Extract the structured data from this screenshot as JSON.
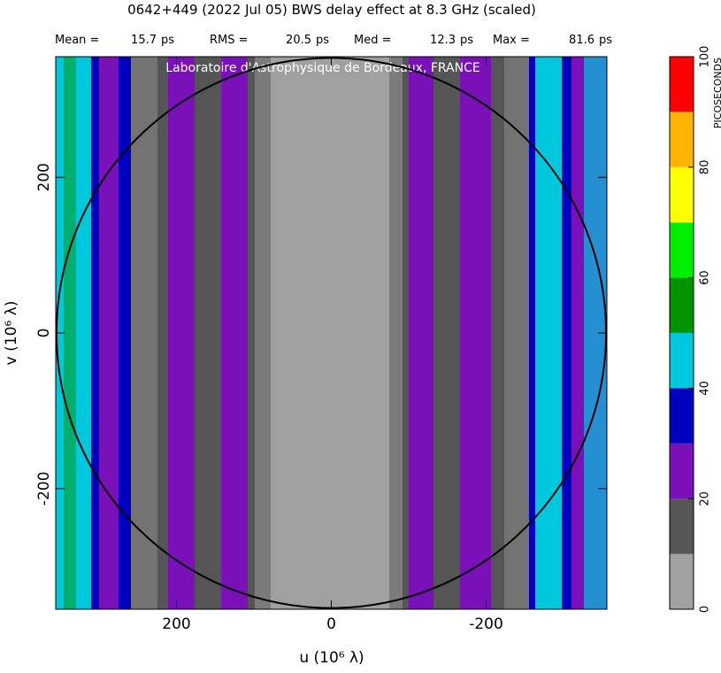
{
  "chart_data": {
    "type": "contour_map",
    "title": "0642+449  (2022 Jul 05)   BWS delay effect at  8.3 GHz (scaled)",
    "stats": [
      {
        "label": "Mean =",
        "value": 15.7,
        "unit": "ps"
      },
      {
        "label": "RMS =",
        "value": 20.5,
        "unit": "ps"
      },
      {
        "label": "Med =",
        "value": 12.3,
        "unit": "ps"
      },
      {
        "label": "Max =",
        "value": 81.6,
        "unit": "ps"
      }
    ],
    "watermark": "Laboratoire d'Astrophysique de Bordeaux, FRANCE",
    "xlabel": "u  (10⁶ λ)",
    "ylabel": "v  (10⁶ λ)",
    "xlim": [
      356,
      -356
    ],
    "ylim": [
      -355,
      355
    ],
    "xticks": [
      200,
      0,
      -200
    ],
    "yticks": [
      -200,
      0,
      200
    ],
    "circle_radius": 355,
    "colorbar": {
      "label": "PICOSECONDS",
      "levels": [
        0,
        10,
        20,
        30,
        40,
        50,
        60,
        70,
        80,
        90,
        100
      ],
      "colors": [
        "#a0a0a0",
        "#555555",
        "#7a10b8",
        "#0000bf",
        "#00c8dc",
        "#009400",
        "#00ee00",
        "#ffff00",
        "#ffb400",
        "#ff0000"
      ],
      "ticks": [
        0,
        20,
        40,
        60,
        80,
        100
      ]
    }
  }
}
